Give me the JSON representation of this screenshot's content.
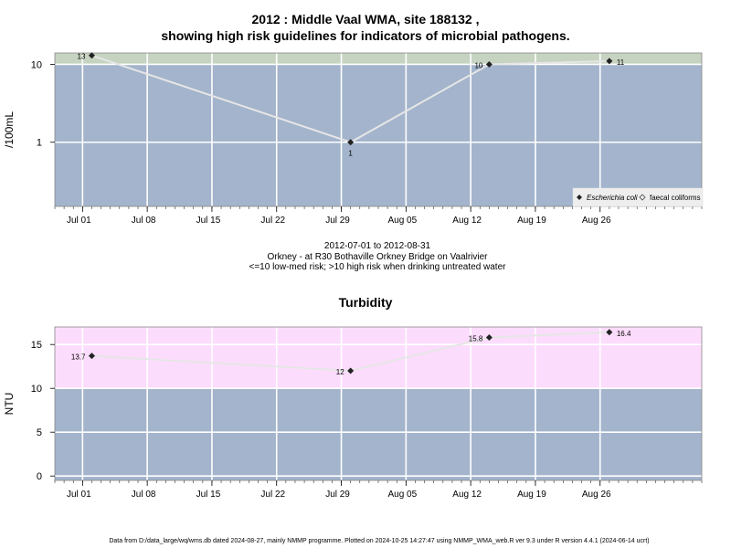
{
  "chart_data": [
    {
      "type": "line",
      "title_line1": "2012 : Middle Vaal WMA, site 188132 ,",
      "title_line2": "showing high risk guidelines for indicators of microbial pathogens.",
      "ylabel": "/100mL",
      "yscale": "log",
      "ylim": [
        0.15,
        14
      ],
      "yticks": [
        1,
        10
      ],
      "ytick_labels": [
        "1",
        "10"
      ],
      "xlim": [
        "2012-06-28",
        "2012-09-06"
      ],
      "xticks": [
        "2012-07-01",
        "2012-07-08",
        "2012-07-15",
        "2012-07-22",
        "2012-07-29",
        "2012-08-05",
        "2012-08-12",
        "2012-08-19",
        "2012-08-26"
      ],
      "xtick_labels": [
        "Jul 01",
        "Jul 08",
        "Jul 15",
        "Jul 22",
        "Jul 29",
        "Aug 05",
        "Aug 12",
        "Aug 19",
        "Aug 26"
      ],
      "guideline": 10,
      "series": [
        {
          "name": "Escherichia coli",
          "x": [
            "2012-07-02",
            "2012-07-30",
            "2012-08-14",
            "2012-08-27"
          ],
          "y": [
            13,
            1,
            10,
            11
          ],
          "labels": [
            "13",
            "1",
            "10",
            "11"
          ]
        }
      ],
      "legend": {
        "placement": "bottom-right",
        "items": [
          "Escherichia coli",
          "faecal coliforms"
        ]
      },
      "colors": {
        "high_zone": "#c6d3c1",
        "low_zone": "#a3b4cc",
        "line": "#e6e6e6",
        "marker": "#222222"
      }
    },
    {
      "type": "line",
      "title": "Turbidity",
      "ylabel": "NTU",
      "ylim": [
        -0.5,
        17
      ],
      "yticks": [
        0,
        5,
        10,
        15
      ],
      "ytick_labels": [
        "0",
        "5",
        "10",
        "15"
      ],
      "xlim": [
        "2012-06-28",
        "2012-09-06"
      ],
      "xticks": [
        "2012-07-01",
        "2012-07-08",
        "2012-07-15",
        "2012-07-22",
        "2012-07-29",
        "2012-08-05",
        "2012-08-12",
        "2012-08-19",
        "2012-08-26"
      ],
      "xtick_labels": [
        "Jul 01",
        "Jul 08",
        "Jul 15",
        "Jul 22",
        "Jul 29",
        "Aug 05",
        "Aug 12",
        "Aug 19",
        "Aug 26"
      ],
      "guideline": 10,
      "series": [
        {
          "x": [
            "2012-07-02",
            "2012-07-30",
            "2012-08-14",
            "2012-08-27"
          ],
          "y": [
            13.7,
            12,
            15.8,
            16.4
          ],
          "labels": [
            "13.7",
            "12",
            "15.8",
            "16.4"
          ]
        }
      ],
      "colors": {
        "high_zone": "#fcdcfc",
        "low_zone": "#a3b4cc",
        "line": "#e6e6e6",
        "marker": "#222222"
      }
    }
  ],
  "caption": {
    "line1": "2012-07-01 to 2012-08-31",
    "line2": "Orkney - at R30 Bothaville Orkney Bridge on Vaalrivier",
    "line3": "<=10 low-med risk; >10 high risk when drinking untreated water"
  },
  "footer": "Data from D:/data_large/wq/wms.db dated 2024-08-27, mainly NMMP programme. Plotted on 2024-10-25 14:27:47 using NMMP_WMA_web.R ver 9.3 under R version 4.4.1 (2024-06-14 ucrt)"
}
